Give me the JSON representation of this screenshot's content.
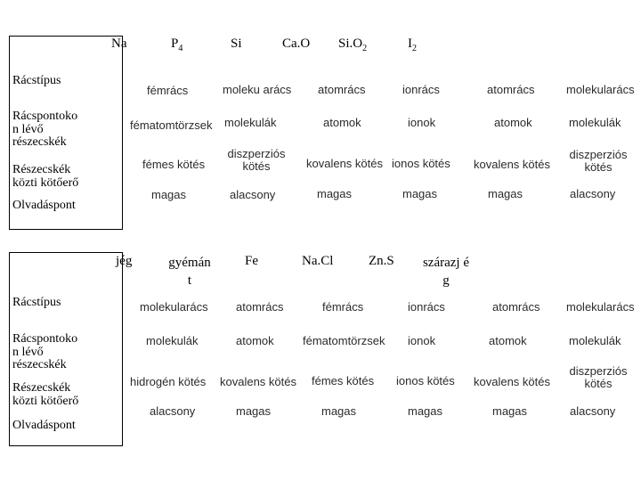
{
  "table1": {
    "headers": [
      {
        "base": "Na",
        "sub": ""
      },
      {
        "base": "P",
        "sub": "4"
      },
      {
        "base": "Si",
        "sub": ""
      },
      {
        "base": "Ca.O",
        "sub": ""
      },
      {
        "base": "Si.O",
        "sub": "2"
      },
      {
        "base": "I",
        "sub": "2"
      }
    ],
    "row_labels": [
      "Rácstípus",
      "Rácspontoko\nn lévő\nrészecskék",
      "Részecskék\nközti kötőerő",
      "Olvadáspont"
    ],
    "rows": {
      "racstipus": [
        "fémrács",
        "moleku arács",
        "atomrács",
        "ionrács",
        "atomrács",
        "molekularács"
      ],
      "reszecskek": [
        "fématomtörzsek",
        "molekulák",
        "atomok",
        "ionok",
        "atomok",
        "molekulák"
      ],
      "kotoero": [
        "fémes kötés",
        "diszperziós\nkötés",
        "kovalens kötés",
        "ionos kötés",
        "kovalens kötés",
        "diszperziós\nkötés"
      ],
      "olvadaspont": [
        "magas",
        "alacsony",
        "magas",
        "magas",
        "magas",
        "alacsony"
      ]
    }
  },
  "table2": {
    "headers": [
      "jég",
      "gyémán\nt",
      "Fe",
      "Na.Cl",
      "Zn.S",
      "szárazj é\ng"
    ],
    "row_labels": [
      "Rácstípus",
      "Rácspontoko\nn lévő\nrészecskék",
      "Részecskék\nközti kötőerő",
      "Olvadáspont"
    ],
    "rows": {
      "racstipus": [
        "molekularács",
        "atomrács",
        "fémrács",
        "ionrács",
        "atomrács",
        "molekularács"
      ],
      "reszecskek": [
        "molekulák",
        "atomok",
        "fématomtörzsek",
        "ionok",
        "atomok",
        "molekulák"
      ],
      "kotoero": [
        "hidrogén kötés",
        "kovalens kötés",
        "fémes kötés",
        "ionos kötés",
        "kovalens kötés",
        "diszperziós\nkötés"
      ],
      "olvadaspont": [
        "alacsony",
        "magas",
        "magas",
        "magas",
        "magas",
        "alacsony"
      ]
    }
  }
}
